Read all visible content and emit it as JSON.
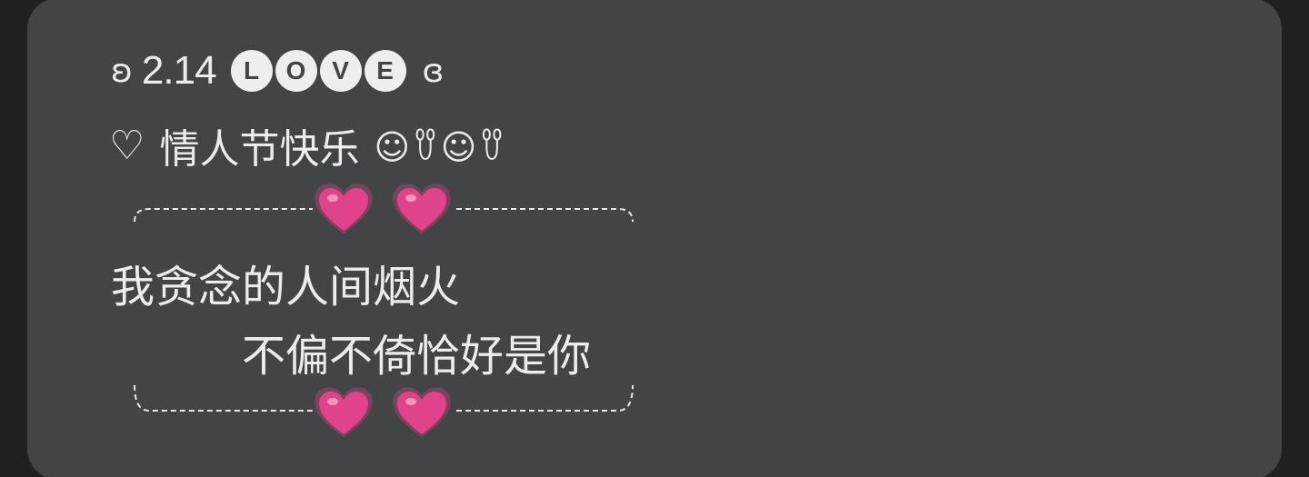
{
  "note": {
    "line1": {
      "left_glyph": "ʚ",
      "date": "2.14",
      "love_letters": [
        "L",
        "O",
        "V",
        "E"
      ],
      "right_glyph": "ɞ"
    },
    "line2": {
      "heart": "♡",
      "text": "情人节快乐",
      "decoration": "☺︎ꀎ☺︎ꀎ"
    },
    "poem": {
      "line1": "我贪念的人间烟火",
      "line2": "不偏不倚恰好是你"
    },
    "heart_color": "#e0438a"
  }
}
